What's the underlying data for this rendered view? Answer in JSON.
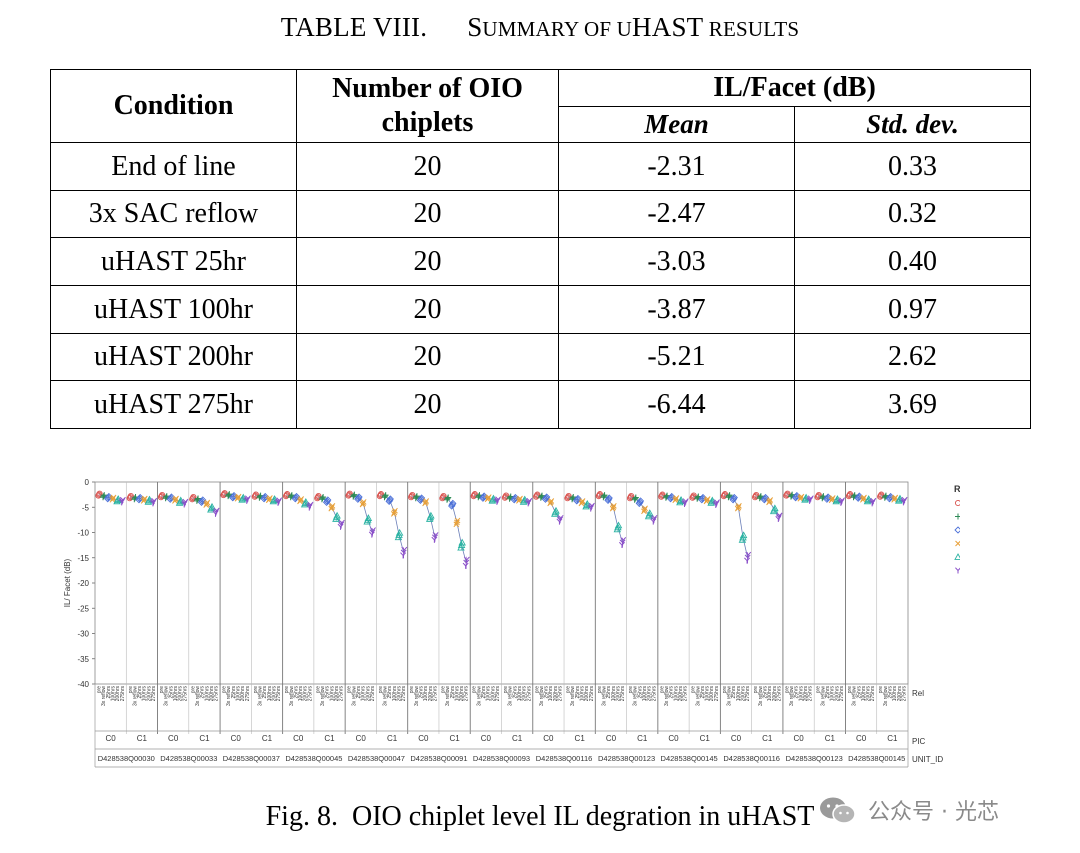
{
  "table_caption": {
    "label": "TABLE VIII.",
    "words": [
      {
        "initial": "S",
        "rest": "UMMARY"
      },
      {
        "initial": "",
        "rest": "OF"
      },
      {
        "initial": "",
        "rest": "U",
        "big_after": "HAST"
      },
      {
        "initial": "",
        "rest": "RESULTS"
      }
    ]
  },
  "table": {
    "headers": {
      "condition": "Condition",
      "count_line1": "Number of OIO",
      "count_line2": "chiplets",
      "il_group": "IL/Facet (dB)",
      "mean": "Mean",
      "std": "Std. dev."
    },
    "rows": [
      {
        "condition": "End of line",
        "count": "20",
        "mean": "-2.31",
        "std": "0.33"
      },
      {
        "condition": "3x SAC reflow",
        "count": "20",
        "mean": "-2.47",
        "std": "0.32"
      },
      {
        "condition": "uHAST 25hr",
        "count": "20",
        "mean": "-3.03",
        "std": "0.40"
      },
      {
        "condition": "uHAST 100hr",
        "count": "20",
        "mean": "-3.87",
        "std": "0.97"
      },
      {
        "condition": "uHAST 200hr",
        "count": "20",
        "mean": "-5.21",
        "std": "2.62"
      },
      {
        "condition": "uHAST 275hr",
        "count": "20",
        "mean": "-6.44",
        "std": "3.69"
      }
    ]
  },
  "chart_data": {
    "type": "scatter",
    "ylabel": "IL/ Facet (dB)",
    "ylim": [
      -40,
      0
    ],
    "yticks": [
      0,
      -5,
      -10,
      -15,
      -20,
      -25,
      -30,
      -35,
      -40
    ],
    "grid": false,
    "legend_placement": "right",
    "legend_title": "Rel",
    "series": [
      {
        "name": "pre",
        "marker": "circle",
        "color": "#d9534f"
      },
      {
        "name": "3x reflow",
        "marker": "plus",
        "color": "#2e8b57"
      },
      {
        "name": "25hrs",
        "marker": "diamond",
        "color": "#4a6fd8"
      },
      {
        "name": "100hrs",
        "marker": "x",
        "color": "#e8a13a"
      },
      {
        "name": "200hrs",
        "marker": "triangle",
        "color": "#2bb3a3"
      },
      {
        "name": "275hrs",
        "marker": "y",
        "color": "#8a4fc9"
      }
    ],
    "axis_labels": {
      "rel": "Rel",
      "pic": "PIC",
      "unit": "UNIT_ID"
    },
    "pic_values": [
      "C0",
      "C1"
    ],
    "rel_short": [
      "pre",
      "3x reflow",
      "25hrs",
      "100hrs",
      "200hrs",
      "275hrs"
    ],
    "units": [
      {
        "id": "D428538Q00030",
        "panels": [
          [
            -2.5,
            -2.8,
            -3.1,
            -3.3,
            -3.6,
            -3.8
          ],
          [
            -3.0,
            -3.2,
            -3.3,
            -3.5,
            -3.7,
            -4.0
          ]
        ]
      },
      {
        "id": "D428538Q00033",
        "panels": [
          [
            -2.8,
            -3.0,
            -3.2,
            -3.5,
            -3.9,
            -4.2
          ],
          [
            -3.2,
            -3.5,
            -3.8,
            -4.3,
            -5.2,
            -6.0
          ]
        ]
      },
      {
        "id": "D428538Q00037",
        "panels": [
          [
            -2.4,
            -2.6,
            -2.9,
            -3.1,
            -3.3,
            -3.5
          ],
          [
            -2.7,
            -2.9,
            -3.1,
            -3.4,
            -3.6,
            -3.9
          ]
        ]
      },
      {
        "id": "D428538Q00045",
        "panels": [
          [
            -2.6,
            -2.8,
            -3.1,
            -3.6,
            -4.2,
            -4.8
          ],
          [
            -3.0,
            -3.2,
            -3.8,
            -5.0,
            -7.0,
            -8.5
          ]
        ]
      },
      {
        "id": "D428538Q00047",
        "panels": [
          [
            -2.5,
            -2.7,
            -3.2,
            -4.2,
            -7.5,
            -10.0
          ],
          [
            -2.6,
            -2.8,
            -3.6,
            -6.0,
            -10.5,
            -14.0
          ]
        ]
      },
      {
        "id": "D428538Q00091",
        "panels": [
          [
            -2.8,
            -3.0,
            -3.4,
            -4.0,
            -7.0,
            -11.0
          ],
          [
            -3.0,
            -3.3,
            -4.5,
            -8.0,
            -12.5,
            -16.0
          ]
        ]
      },
      {
        "id": "D428538Q00093",
        "panels": [
          [
            -2.6,
            -2.8,
            -3.0,
            -3.2,
            -3.5,
            -3.7
          ],
          [
            -2.9,
            -3.1,
            -3.3,
            -3.5,
            -3.7,
            -4.0
          ]
        ]
      },
      {
        "id": "D428538Q00116",
        "panels": [
          [
            -2.7,
            -2.9,
            -3.2,
            -4.0,
            -6.0,
            -7.5
          ],
          [
            -3.0,
            -3.2,
            -3.5,
            -4.0,
            -4.6,
            -5.0
          ]
        ]
      },
      {
        "id": "D428538Q00123",
        "panels": [
          [
            -2.6,
            -2.8,
            -3.4,
            -5.0,
            -9.0,
            -12.0
          ],
          [
            -3.0,
            -3.3,
            -4.0,
            -5.5,
            -6.5,
            -7.5
          ]
        ]
      },
      {
        "id": "D428538Q00145",
        "panels": [
          [
            -2.7,
            -2.9,
            -3.1,
            -3.4,
            -3.8,
            -4.1
          ],
          [
            -2.9,
            -3.1,
            -3.3,
            -3.6,
            -3.9,
            -4.3
          ]
        ]
      },
      {
        "id": "D428538Q00116",
        "panels": [
          [
            -2.6,
            -2.8,
            -3.3,
            -5.0,
            -11.0,
            -15.0
          ],
          [
            -2.8,
            -3.0,
            -3.3,
            -3.8,
            -5.5,
            -7.0
          ]
        ]
      },
      {
        "id": "D428538Q00123",
        "panels": [
          [
            -2.5,
            -2.7,
            -2.9,
            -3.1,
            -3.3,
            -3.5
          ],
          [
            -2.8,
            -3.0,
            -3.2,
            -3.4,
            -3.6,
            -3.9
          ]
        ]
      },
      {
        "id": "D428538Q00145",
        "panels": [
          [
            -2.6,
            -2.8,
            -3.0,
            -3.3,
            -3.6,
            -4.0
          ],
          [
            -2.7,
            -2.9,
            -3.1,
            -3.3,
            -3.5,
            -3.8
          ]
        ]
      }
    ]
  },
  "figure_caption": {
    "label": "Fig. 8.",
    "text": "OIO chiplet level IL degration in uHAST"
  },
  "watermark": {
    "text": "公众号 · 光芯"
  }
}
